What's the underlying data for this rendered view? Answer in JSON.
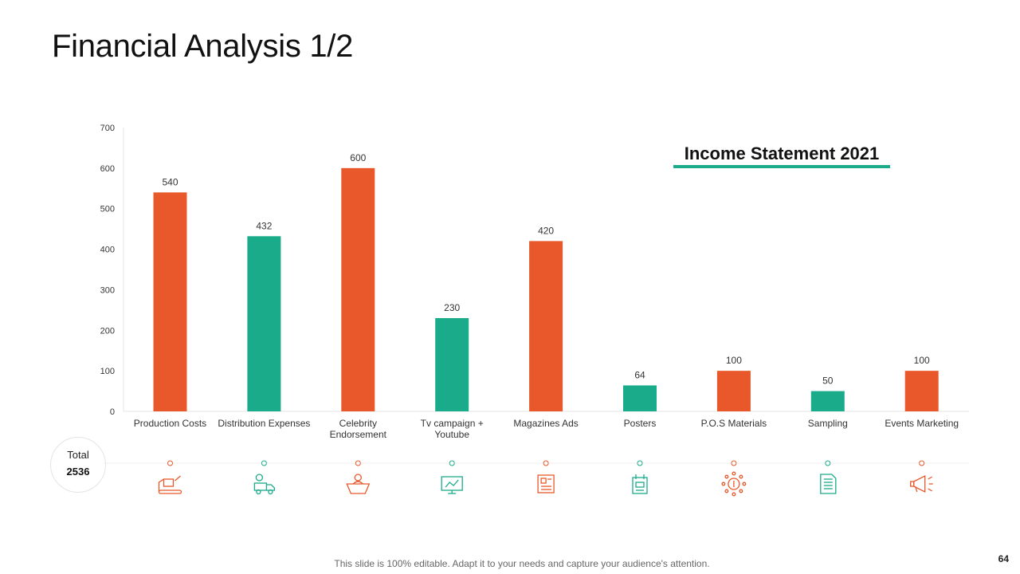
{
  "slide": {
    "title": "Financial Analysis 1/2",
    "footer": "This slide is 100% editable. Adapt it to your needs and capture your audience's attention.",
    "page_number": "64"
  },
  "legend": {
    "title": "Income Statement 2021"
  },
  "total": {
    "label": "Total",
    "value": "2536"
  },
  "colors": {
    "orange": "#e8582a",
    "teal": "#1aab8a",
    "axis": "#e6e6e6",
    "text": "#333333"
  },
  "chart_data": {
    "type": "bar",
    "title": "Income Statement 2021",
    "xlabel": "",
    "ylabel": "",
    "ylim": [
      0,
      700
    ],
    "yticks": [
      0,
      100,
      200,
      300,
      400,
      500,
      600,
      700
    ],
    "grid": false,
    "categories": [
      "Production Costs",
      "Distribution Expenses",
      "Celebrity Endorsement",
      "Tv campaign + Youtube",
      "Magazines Ads",
      "Posters",
      "P.O.S Materials",
      "Sampling",
      "Events Marketing"
    ],
    "category_lines": [
      [
        "Production Costs"
      ],
      [
        "Distribution Expenses"
      ],
      [
        "Celebrity",
        "Endorsement"
      ],
      [
        "Tv campaign +",
        "Youtube"
      ],
      [
        "Magazines Ads"
      ],
      [
        "Posters"
      ],
      [
        "P.O.S Materials"
      ],
      [
        "Sampling"
      ],
      [
        "Events Marketing"
      ]
    ],
    "values": [
      540,
      432,
      600,
      230,
      420,
      64,
      100,
      50,
      100
    ],
    "bar_colors": [
      "orange",
      "teal",
      "orange",
      "teal",
      "orange",
      "teal",
      "orange",
      "teal",
      "orange"
    ],
    "icons": [
      "factory-icon",
      "delivery-truck-icon",
      "celebrity-icon",
      "tv-campaign-icon",
      "newspaper-icon",
      "poster-icon",
      "money-network-icon",
      "document-icon",
      "megaphone-icon"
    ]
  }
}
